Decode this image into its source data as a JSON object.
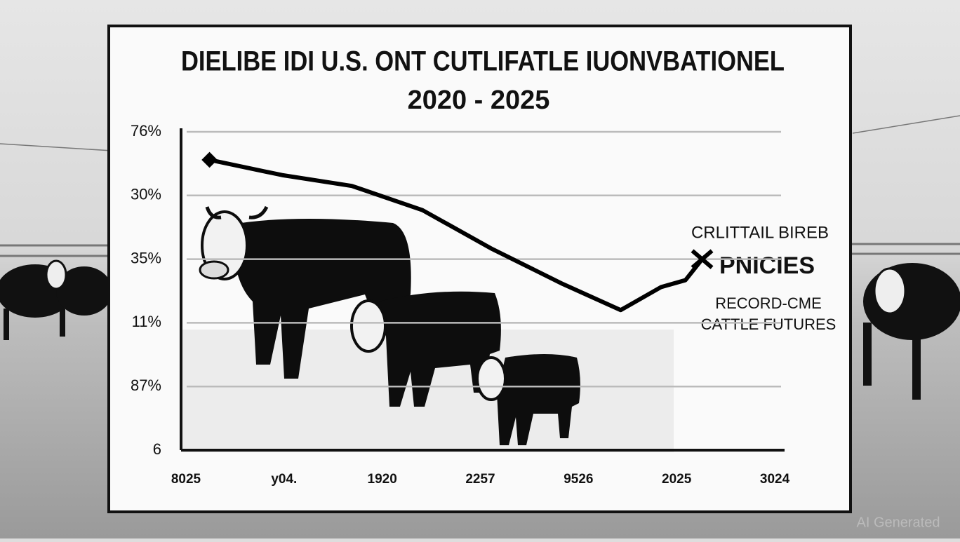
{
  "chart_data": {
    "type": "line",
    "title": "DIELIBE IDI U.S. ONT CUTLIFATLE IUONVBATIONEL",
    "subtitle": "2020 - 2025",
    "xlim": [
      -0.05,
      6.1
    ],
    "xticks": [
      {
        "value": 0,
        "label": "8025"
      },
      {
        "value": 1,
        "label": "y04."
      },
      {
        "value": 2,
        "label": "1920"
      },
      {
        "value": 3,
        "label": "2257"
      },
      {
        "value": 4,
        "label": "9526"
      },
      {
        "value": 5,
        "label": "2025"
      },
      {
        "value": 6,
        "label": "3024"
      }
    ],
    "ylim": [
      0,
      5
    ],
    "yticks": [
      {
        "value": 0,
        "label": "6"
      },
      {
        "value": 1,
        "label": "87%"
      },
      {
        "value": 2,
        "label": "11%"
      },
      {
        "value": 3,
        "label": "35%"
      },
      {
        "value": 4,
        "label": "30%"
      },
      {
        "value": 5,
        "label": "76%"
      }
    ],
    "grid": true,
    "series": [
      {
        "color": "#000000",
        "x": [
          0.24,
          0.98,
          1.69,
          2.41,
          3.12,
          3.84,
          4.43,
          4.84,
          5.09,
          5.26
        ],
        "values": [
          4.56,
          4.32,
          4.15,
          3.77,
          3.16,
          2.61,
          2.2,
          2.56,
          2.67,
          3.0
        ]
      }
    ],
    "annotations": [
      "CRLITTAIL BIREB",
      "PNICIES",
      "RECORD-CME",
      "CATTLE FUTURES"
    ],
    "watermark": "AI Generated"
  }
}
